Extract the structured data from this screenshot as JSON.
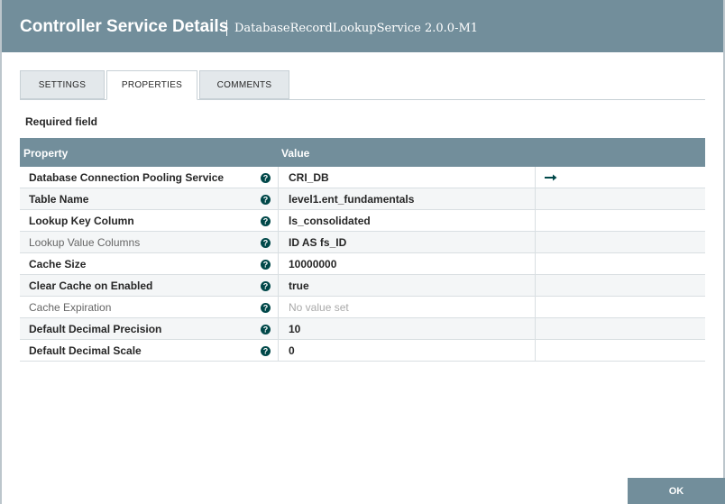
{
  "header": {
    "title": "Controller Service Details",
    "subtitle": "DatabaseRecordLookupService 2.0.0-M1"
  },
  "tabs": [
    {
      "label": "SETTINGS",
      "active": false
    },
    {
      "label": "PROPERTIES",
      "active": true
    },
    {
      "label": "COMMENTS",
      "active": false
    }
  ],
  "required_label": "Required field",
  "table": {
    "columns": [
      "Property",
      "Value"
    ],
    "rows": [
      {
        "property": "Database Connection Pooling Service",
        "value": "CRI_DB",
        "required": true,
        "value_set": true,
        "link": true
      },
      {
        "property": "Table Name",
        "value": "level1.ent_fundamentals",
        "required": true,
        "value_set": true,
        "link": false
      },
      {
        "property": "Lookup Key Column",
        "value": "ls_consolidated",
        "required": true,
        "value_set": true,
        "link": false
      },
      {
        "property": "Lookup Value Columns",
        "value": "ID AS fs_ID",
        "required": false,
        "value_set": true,
        "link": false
      },
      {
        "property": "Cache Size",
        "value": "10000000",
        "required": true,
        "value_set": true,
        "link": false
      },
      {
        "property": "Clear Cache on Enabled",
        "value": "true",
        "required": true,
        "value_set": true,
        "link": false
      },
      {
        "property": "Cache Expiration",
        "value": "No value set",
        "required": false,
        "value_set": false,
        "link": false
      },
      {
        "property": "Default Decimal Precision",
        "value": "10",
        "required": true,
        "value_set": true,
        "link": false
      },
      {
        "property": "Default Decimal Scale",
        "value": "0",
        "required": true,
        "value_set": true,
        "link": false
      }
    ]
  },
  "button": "OK"
}
